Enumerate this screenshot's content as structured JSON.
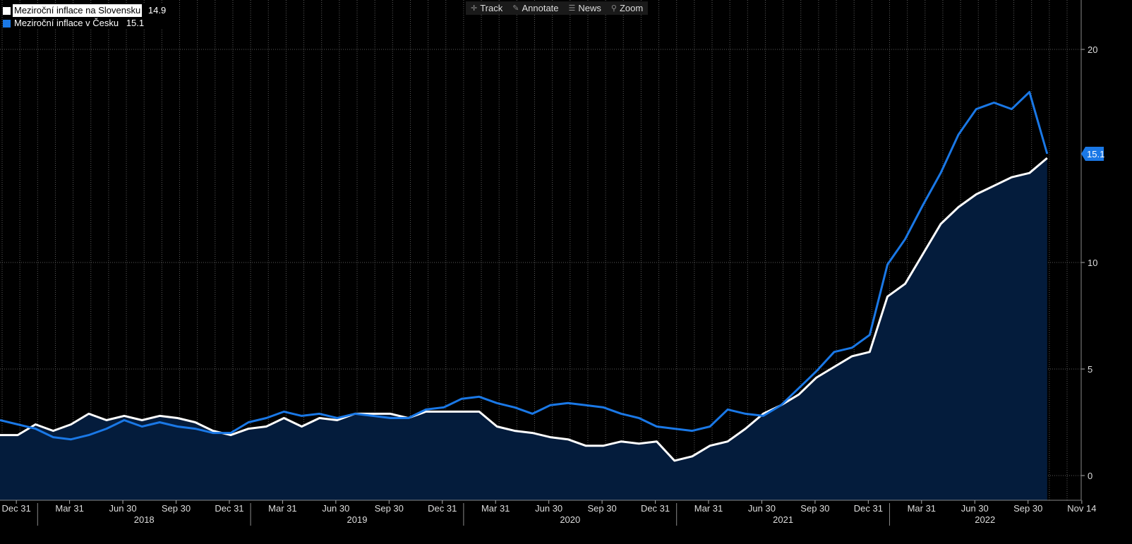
{
  "toolbar": {
    "track": "Track",
    "annotate": "Annotate",
    "news": "News",
    "zoom": "Zoom"
  },
  "legend": [
    {
      "name": "Meziroční inflace na Slovensku",
      "value": "14.9",
      "color": "#ffffff"
    },
    {
      "name": "Meziroční inflace v Česku",
      "value": "15.1",
      "color": "#1a78e6"
    }
  ],
  "last_value_tag": "15.1",
  "colors": {
    "sk_line": "#ffffff",
    "cz_line": "#1a78e6",
    "sk_fill": "#041c3c",
    "background": "#000000",
    "grid": "#5a5a5a"
  },
  "chart_data": {
    "type": "line",
    "ylim": [
      -1,
      22
    ],
    "yticks": [
      0,
      5,
      10,
      20
    ],
    "grid": true,
    "legend_position": "top-left",
    "x_tick_labels": [
      "Dec 31",
      "Mar 31",
      "Jun 30",
      "Sep 30",
      "Dec 31",
      "Mar 31",
      "Jun 30",
      "Sep 30",
      "Dec 31",
      "Mar 31",
      "Jun 30",
      "Sep 30",
      "Dec 31",
      "Mar 31",
      "Jun 30",
      "Sep 30",
      "Dec 31",
      "Mar 31",
      "Jun 30",
      "Sep 30",
      "Nov 14"
    ],
    "year_labels": [
      "2018",
      "2019",
      "2020",
      "2021",
      "2022"
    ],
    "x": [
      "2017-11",
      "2017-12",
      "2018-01",
      "2018-02",
      "2018-03",
      "2018-04",
      "2018-05",
      "2018-06",
      "2018-07",
      "2018-08",
      "2018-09",
      "2018-10",
      "2018-11",
      "2018-12",
      "2019-01",
      "2019-02",
      "2019-03",
      "2019-04",
      "2019-05",
      "2019-06",
      "2019-07",
      "2019-08",
      "2019-09",
      "2019-10",
      "2019-11",
      "2019-12",
      "2020-01",
      "2020-02",
      "2020-03",
      "2020-04",
      "2020-05",
      "2020-06",
      "2020-07",
      "2020-08",
      "2020-09",
      "2020-10",
      "2020-11",
      "2020-12",
      "2021-01",
      "2021-02",
      "2021-03",
      "2021-04",
      "2021-05",
      "2021-06",
      "2021-07",
      "2021-08",
      "2021-09",
      "2021-10",
      "2021-11",
      "2021-12",
      "2022-01",
      "2022-02",
      "2022-03",
      "2022-04",
      "2022-05",
      "2022-06",
      "2022-07",
      "2022-08",
      "2022-09",
      "2022-10"
    ],
    "series": [
      {
        "name": "Meziroční inflace na Slovensku",
        "values": [
          1.9,
          1.9,
          2.4,
          2.1,
          2.4,
          2.9,
          2.6,
          2.8,
          2.6,
          2.8,
          2.7,
          2.5,
          2.1,
          1.9,
          2.2,
          2.3,
          2.7,
          2.3,
          2.7,
          2.6,
          2.9,
          2.9,
          2.9,
          2.7,
          3.0,
          3.0,
          3.0,
          3.0,
          2.3,
          2.1,
          2.0,
          1.8,
          1.7,
          1.4,
          1.4,
          1.6,
          1.5,
          1.6,
          0.7,
          0.9,
          1.4,
          1.6,
          2.2,
          2.9,
          3.3,
          3.8,
          4.6,
          5.1,
          5.6,
          5.8,
          8.4,
          9.0,
          10.4,
          11.8,
          12.6,
          13.2,
          13.6,
          14.0,
          14.2,
          14.9
        ]
      },
      {
        "name": "Meziroční inflace v Česku",
        "values": [
          2.6,
          2.4,
          2.2,
          1.8,
          1.7,
          1.9,
          2.2,
          2.6,
          2.3,
          2.5,
          2.3,
          2.2,
          2.0,
          2.0,
          2.5,
          2.7,
          3.0,
          2.8,
          2.9,
          2.7,
          2.9,
          2.8,
          2.7,
          2.7,
          3.1,
          3.2,
          3.6,
          3.7,
          3.4,
          3.2,
          2.9,
          3.3,
          3.4,
          3.3,
          3.2,
          2.9,
          2.7,
          2.3,
          2.2,
          2.1,
          2.3,
          3.1,
          2.9,
          2.8,
          3.3,
          4.1,
          4.9,
          5.8,
          6.0,
          6.6,
          9.9,
          11.1,
          12.7,
          14.2,
          16.0,
          17.2,
          17.5,
          17.2,
          18.0,
          15.1
        ]
      }
    ]
  }
}
